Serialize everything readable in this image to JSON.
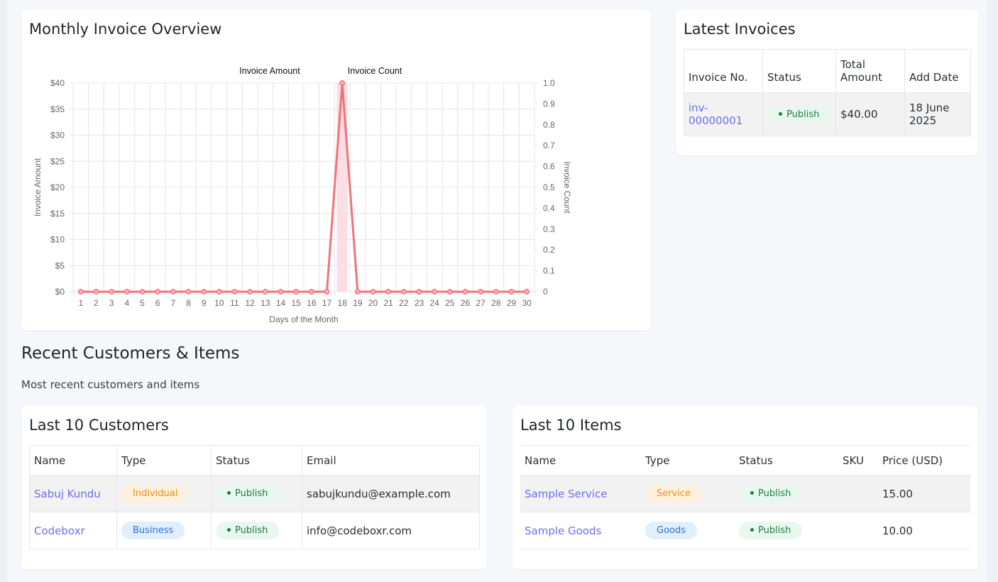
{
  "chart_card": {
    "title": "Monthly Invoice Overview"
  },
  "chart_data": {
    "type": "line",
    "x": [
      1,
      2,
      3,
      4,
      5,
      6,
      7,
      8,
      9,
      10,
      11,
      12,
      13,
      14,
      15,
      16,
      17,
      18,
      19,
      20,
      21,
      22,
      23,
      24,
      25,
      26,
      27,
      28,
      29,
      30
    ],
    "series": [
      {
        "name": "Invoice Amount",
        "axis": "left",
        "kind": "line",
        "color": "#f07379",
        "values": [
          0,
          0,
          0,
          0,
          0,
          0,
          0,
          0,
          0,
          0,
          0,
          0,
          0,
          0,
          0,
          0,
          0,
          40,
          0,
          0,
          0,
          0,
          0,
          0,
          0,
          0,
          0,
          0,
          0,
          0
        ]
      },
      {
        "name": "Invoice Count",
        "axis": "right",
        "kind": "bar",
        "color": "#fcdde3",
        "values": [
          0,
          0,
          0,
          0,
          0,
          0,
          0,
          0,
          0,
          0,
          0,
          0,
          0,
          0,
          0,
          0,
          0,
          1,
          0,
          0,
          0,
          0,
          0,
          0,
          0,
          0,
          0,
          0,
          0,
          0
        ]
      }
    ],
    "xlabel": "Days of the Month",
    "ylabel": "Invoice Amount",
    "y2label": "Invoice Count",
    "ylim": [
      0,
      40
    ],
    "y2lim": [
      0,
      1
    ],
    "yticks": [
      "$0",
      "$5",
      "$10",
      "$15",
      "$20",
      "$25",
      "$30",
      "$35",
      "$40"
    ],
    "y2ticks": [
      "0",
      "0.1",
      "0.2",
      "0.3",
      "0.4",
      "0.5",
      "0.6",
      "0.7",
      "0.8",
      "0.9",
      "1.0"
    ],
    "grid": true,
    "legend": "top-center"
  },
  "latest_invoices": {
    "title": "Latest Invoices",
    "headers": [
      "Invoice No.",
      "Status",
      "Total Amount",
      "Add Date"
    ],
    "rows": [
      {
        "invoice_no": "inv-00000001",
        "status": "Publish",
        "total": "$40.00",
        "date": "18 June 2025"
      }
    ]
  },
  "recent": {
    "title": "Recent Customers & Items",
    "subtitle": "Most recent customers and items"
  },
  "customers": {
    "title": "Last 10 Customers",
    "headers": [
      "Name",
      "Type",
      "Status",
      "Email"
    ],
    "rows": [
      {
        "name": "Sabuj Kundu",
        "type": "Individual",
        "status": "Publish",
        "email": "sabujkundu@example.com"
      },
      {
        "name": "Codeboxr",
        "type": "Business",
        "status": "Publish",
        "email": "info@codeboxr.com"
      }
    ]
  },
  "items": {
    "title": "Last 10 Items",
    "headers": [
      "Name",
      "Type",
      "Status",
      "SKU",
      "Price (USD)"
    ],
    "rows": [
      {
        "name": "Sample Service",
        "type": "Service",
        "status": "Publish",
        "sku": "",
        "price": "15.00"
      },
      {
        "name": "Sample Goods",
        "type": "Goods",
        "status": "Publish",
        "sku": "",
        "price": "10.00"
      }
    ]
  },
  "colors": {
    "link": "#6f6ef0",
    "publish_text": "#1e7a42",
    "publish_bg": "#e9f8ef",
    "warning_text": "#e69019",
    "info_text": "#2e6fd1"
  }
}
